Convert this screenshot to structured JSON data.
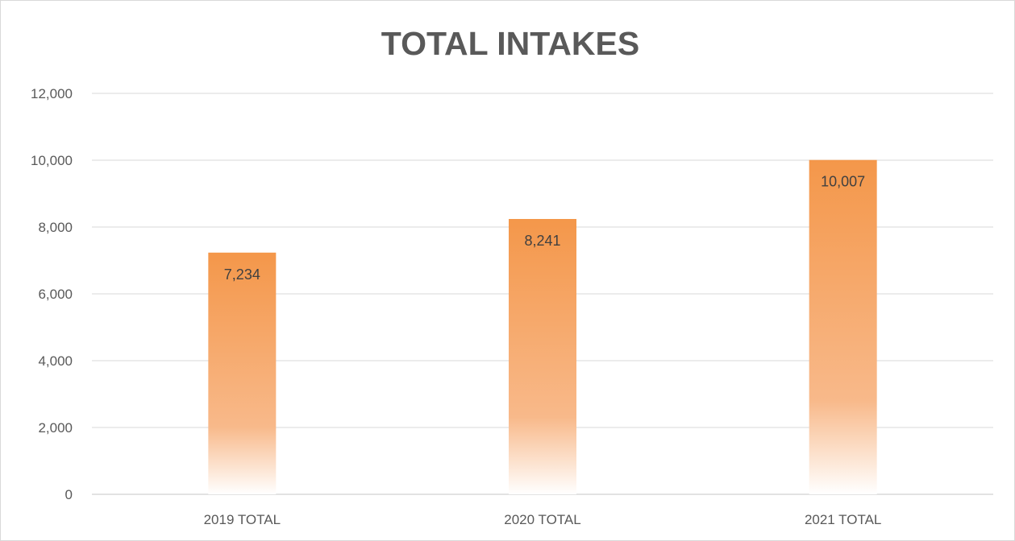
{
  "chart_data": {
    "type": "bar",
    "title": "TOTAL INTAKES",
    "categories": [
      "2019 TOTAL",
      "2020 TOTAL",
      "2021 TOTAL"
    ],
    "values": [
      7234,
      8241,
      10007
    ],
    "data_labels": [
      "7,234",
      "8,241",
      "10,007"
    ],
    "ylim": [
      0,
      12000
    ],
    "y_ticks": [
      {
        "value": 0,
        "label": "0"
      },
      {
        "value": 2000,
        "label": "2,000"
      },
      {
        "value": 4000,
        "label": "4,000"
      },
      {
        "value": 6000,
        "label": "6,000"
      },
      {
        "value": 8000,
        "label": "8,000"
      },
      {
        "value": 10000,
        "label": "10,000"
      },
      {
        "value": 12000,
        "label": "12,000"
      }
    ],
    "grid": true,
    "legend": "none",
    "colors": {
      "bar": "#f4974a",
      "bar_fade": "#ffffff",
      "grid": "#d9d9d9",
      "text": "#595959"
    }
  }
}
